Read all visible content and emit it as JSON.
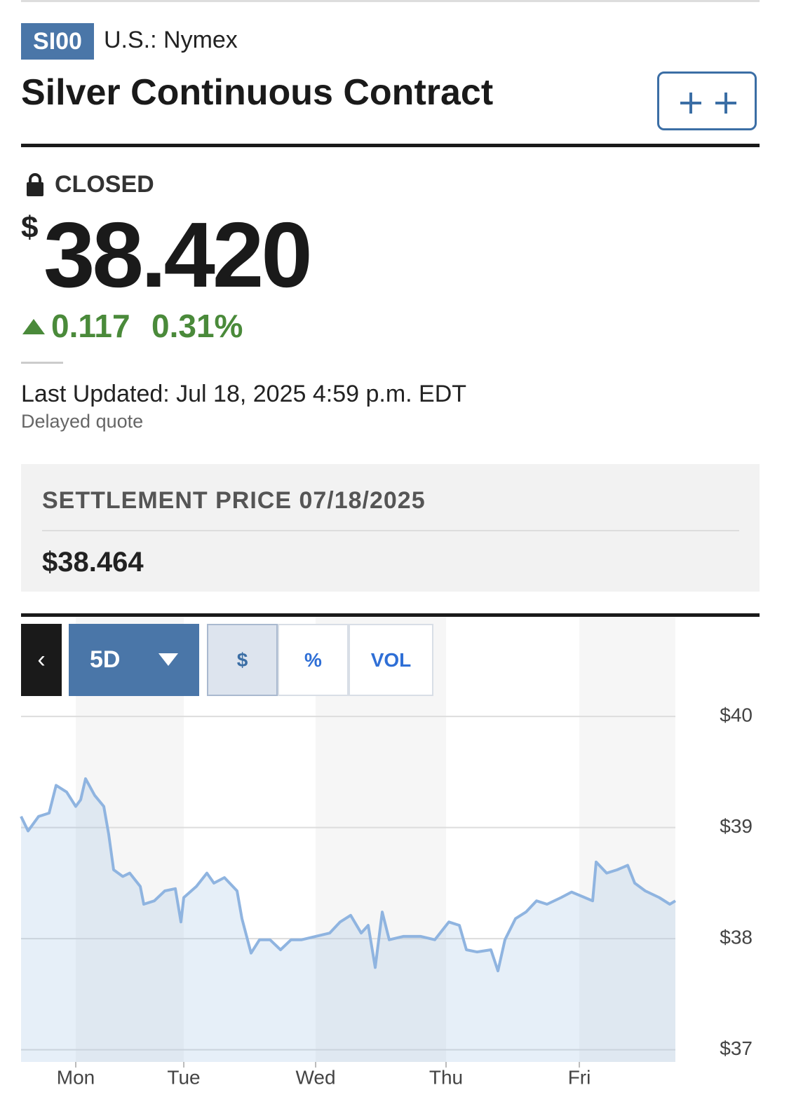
{
  "header": {
    "symbol": "SI00",
    "exchange": "U.S.: Nymex",
    "title": "Silver Continuous Contract"
  },
  "quote": {
    "status": "CLOSED",
    "currency": "$",
    "price": "38.420",
    "change": "0.117",
    "change_percent": "0.31%",
    "last_updated": "Last Updated: Jul 18, 2025 4:59 p.m. EDT",
    "note": "Delayed quote"
  },
  "settlement": {
    "label": "SETTLEMENT PRICE 07/18/2025",
    "value": "$38.464"
  },
  "controls": {
    "range": "5D",
    "modes": [
      "$",
      "%",
      "VOL"
    ]
  },
  "chart_data": {
    "type": "area",
    "color": "#8fb4e0",
    "grid": true,
    "x": [
      0,
      1.07,
      2.68,
      4.29,
      5.36,
      6.97,
      8.36,
      9.11,
      9.86,
      11.25,
      12.65,
      13.4,
      14.15,
      15.54,
      16.61,
      18.22,
      18.76,
      20.36,
      21.97,
      23.58,
      24.44,
      24.87,
      26.8,
      28.4,
      29.47,
      31.08,
      33.01,
      33.76,
      35.16,
      36.44,
      38.05,
      39.66,
      41.26,
      42.87,
      45.02,
      47.16,
      48.77,
      50.38,
      51.98,
      53.05,
      54.13,
      55.2,
      56.27,
      58.41,
      61.09,
      63.24,
      65.38,
      66.99,
      68.06,
      69.67,
      71.81,
      72.88,
      73.95,
      75.56,
      77.17,
      78.78,
      80.39,
      82.53,
      84.14,
      85.74,
      87.35,
      87.89,
      89.5,
      91.1,
      92.71,
      93.78,
      95.39,
      97.53,
      99.14,
      100
    ],
    "values": [
      39.1,
      38.97,
      39.1,
      39.13,
      39.38,
      39.32,
      39.19,
      39.25,
      39.44,
      39.29,
      39.19,
      38.94,
      38.62,
      38.56,
      38.59,
      38.47,
      38.31,
      38.34,
      38.43,
      38.45,
      38.15,
      38.37,
      38.47,
      38.59,
      38.5,
      38.55,
      38.43,
      38.18,
      37.87,
      37.99,
      37.99,
      37.9,
      37.99,
      37.99,
      38.02,
      38.05,
      38.15,
      38.21,
      38.05,
      38.12,
      37.74,
      38.24,
      37.99,
      38.02,
      38.02,
      37.99,
      38.15,
      38.12,
      37.9,
      37.88,
      37.9,
      37.71,
      37.99,
      38.18,
      38.24,
      38.34,
      38.31,
      38.37,
      38.42,
      38.38,
      38.34,
      38.69,
      38.59,
      38.62,
      38.66,
      38.5,
      38.43,
      38.37,
      38.31,
      38.34
    ],
    "xlim": [
      0,
      100
    ],
    "xticks": [
      {
        "value": 8.36,
        "label": "Mon"
      },
      {
        "value": 24.87,
        "label": "Tue"
      },
      {
        "value": 45.02,
        "label": "Wed"
      },
      {
        "value": 64.95,
        "label": "Thu"
      },
      {
        "value": 85.32,
        "label": "Fri"
      }
    ],
    "ylim": [
      36.89,
      40.14
    ],
    "yticks": [
      {
        "value": 37,
        "label": "$37"
      },
      {
        "value": 38,
        "label": "$38"
      },
      {
        "value": 39,
        "label": "$39"
      },
      {
        "value": 40,
        "label": "$40"
      }
    ]
  }
}
